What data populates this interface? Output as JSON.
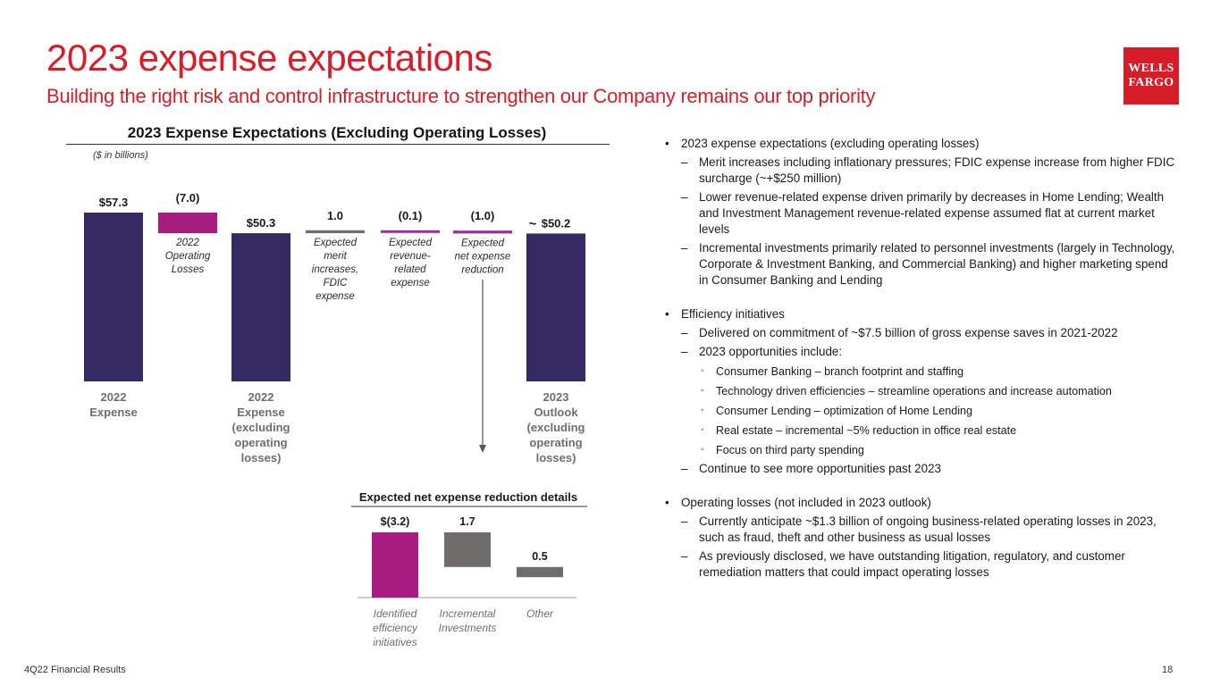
{
  "header": {
    "title": "2023 expense expectations",
    "subtitle": "Building the right risk and control infrastructure to strengthen our Company remains our top priority",
    "logo_line1": "WELLS",
    "logo_line2": "FARGO"
  },
  "colors": {
    "brand_red": "#d71e28",
    "navy": "#352a63",
    "magenta": "#a81c82",
    "gray": "#706c6c",
    "purple": "#9c2f9f"
  },
  "chart_data": [
    {
      "type": "bar",
      "subtype": "waterfall",
      "title": "2023 Expense Expectations (Excluding Operating Losses)",
      "units_note": "($ in billions)",
      "steps": [
        {
          "id": "exp2022",
          "kind": "total",
          "value": 57.3,
          "label": "$57.3",
          "category": [
            "2022",
            "Expense"
          ],
          "desc": []
        },
        {
          "id": "oplosses",
          "kind": "delta",
          "value": -7.0,
          "label": "(7.0)",
          "category": [],
          "desc": [
            "2022",
            "Operating",
            "Losses"
          ]
        },
        {
          "id": "exp2022x",
          "kind": "total",
          "value": 50.3,
          "label": "$50.3",
          "category": [
            "2022",
            "Expense",
            "(excluding",
            "operating",
            "losses)"
          ],
          "desc": []
        },
        {
          "id": "merit",
          "kind": "delta",
          "value": 1.0,
          "label": "1.0",
          "category": [],
          "desc": [
            "Expected",
            "merit",
            "increases,",
            "FDIC",
            "expense"
          ]
        },
        {
          "id": "revenue",
          "kind": "delta",
          "value": -0.1,
          "label": "(0.1)",
          "category": [],
          "desc": [
            "Expected",
            "revenue-",
            "related",
            "expense"
          ]
        },
        {
          "id": "netred",
          "kind": "delta",
          "value": -1.0,
          "label": "(1.0)",
          "category": [],
          "desc": [
            "Expected",
            "net expense",
            "reduction"
          ]
        },
        {
          "id": "outlook2023",
          "kind": "total",
          "value": 50.2,
          "label": "$50.2",
          "prefix": "~",
          "category": [
            "2023",
            "Outlook",
            "(excluding",
            "operating",
            "losses)"
          ],
          "desc": []
        }
      ]
    },
    {
      "type": "bar",
      "title": "Expected net expense reduction details",
      "categories": [
        [
          "Identified",
          "efficiency",
          "initiatives"
        ],
        [
          "Incremental",
          "Investments"
        ],
        [
          "Other"
        ]
      ],
      "values": [
        -3.2,
        1.7,
        0.5
      ],
      "labels": [
        "$(3.2)",
        "1.7",
        "0.5"
      ]
    }
  ],
  "bullets": {
    "expenses": {
      "heading": "2023 expense expectations (excluding operating losses)",
      "items": [
        "Merit increases including inflationary pressures; FDIC expense increase from higher FDIC surcharge (~+$250 million)",
        "Lower revenue-related expense driven primarily by decreases in Home Lending; Wealth and Investment Management revenue-related expense assumed flat at current market levels",
        "Incremental investments primarily related to personnel investments (largely in Technology, Corporate & Investment Banking, and Commercial Banking) and higher marketing spend in Consumer Banking and Lending"
      ]
    },
    "efficiency": {
      "heading": "Efficiency initiatives",
      "item1": "Delivered on commitment of ~$7.5 billion of gross expense saves in 2021-2022",
      "item2": "2023 opportunities include:",
      "subitems": [
        "Consumer Banking – branch footprint and staffing",
        "Technology driven efficiencies – streamline operations and increase automation",
        "Consumer Lending – optimization of Home Lending",
        "Real estate – incremental ~5% reduction in office real estate",
        "Focus on third party spending"
      ],
      "item3": "Continue to see more opportunities past 2023"
    },
    "oplosses": {
      "heading": "Operating losses (not included in 2023 outlook)",
      "items": [
        "Currently anticipate ~$1.3 billion of ongoing business-related operating losses in 2023, such as fraud, theft and other business as usual losses",
        "As previously disclosed, we have outstanding litigation, regulatory, and customer remediation matters that could impact operating losses"
      ]
    }
  },
  "footer": {
    "left": "4Q22 Financial Results",
    "page": "18"
  }
}
